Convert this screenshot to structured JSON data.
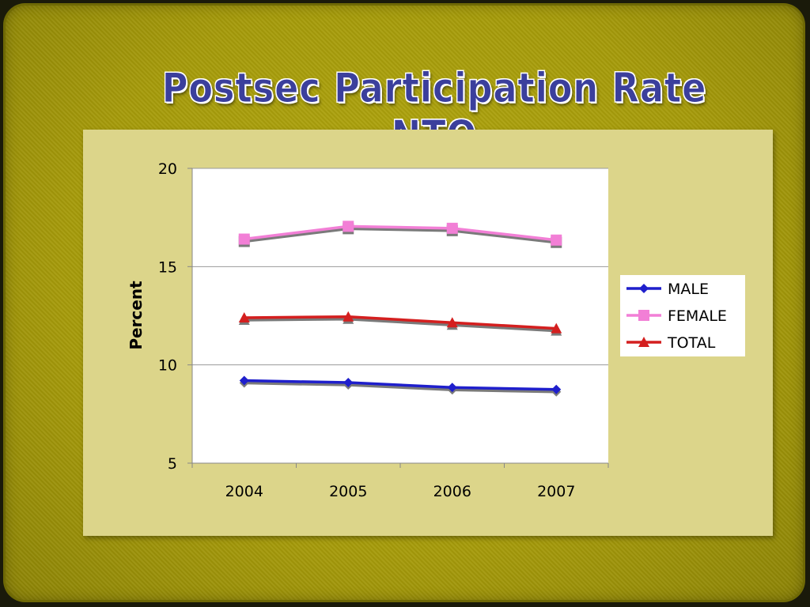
{
  "slide": {
    "title": "Postsec Participation Rate NTO"
  },
  "chart_data": {
    "type": "line",
    "title": "",
    "xlabel": "",
    "ylabel": "Percent",
    "categories": [
      "2004",
      "2005",
      "2006",
      "2007"
    ],
    "ylim": [
      5,
      20
    ],
    "yticks": [
      5,
      10,
      15,
      20
    ],
    "grid": true,
    "legend_position": "right",
    "series": [
      {
        "name": "MALE",
        "values": [
          9.2,
          9.1,
          8.85,
          8.75
        ],
        "color": "#1f1fcc",
        "marker": "diamond"
      },
      {
        "name": "FEMALE",
        "values": [
          16.4,
          17.05,
          16.95,
          16.35
        ],
        "color": "#f27fd6",
        "marker": "square"
      },
      {
        "name": "TOTAL",
        "values": [
          12.4,
          12.45,
          12.15,
          11.85
        ],
        "color": "#d41f1f",
        "marker": "triangle"
      }
    ]
  }
}
